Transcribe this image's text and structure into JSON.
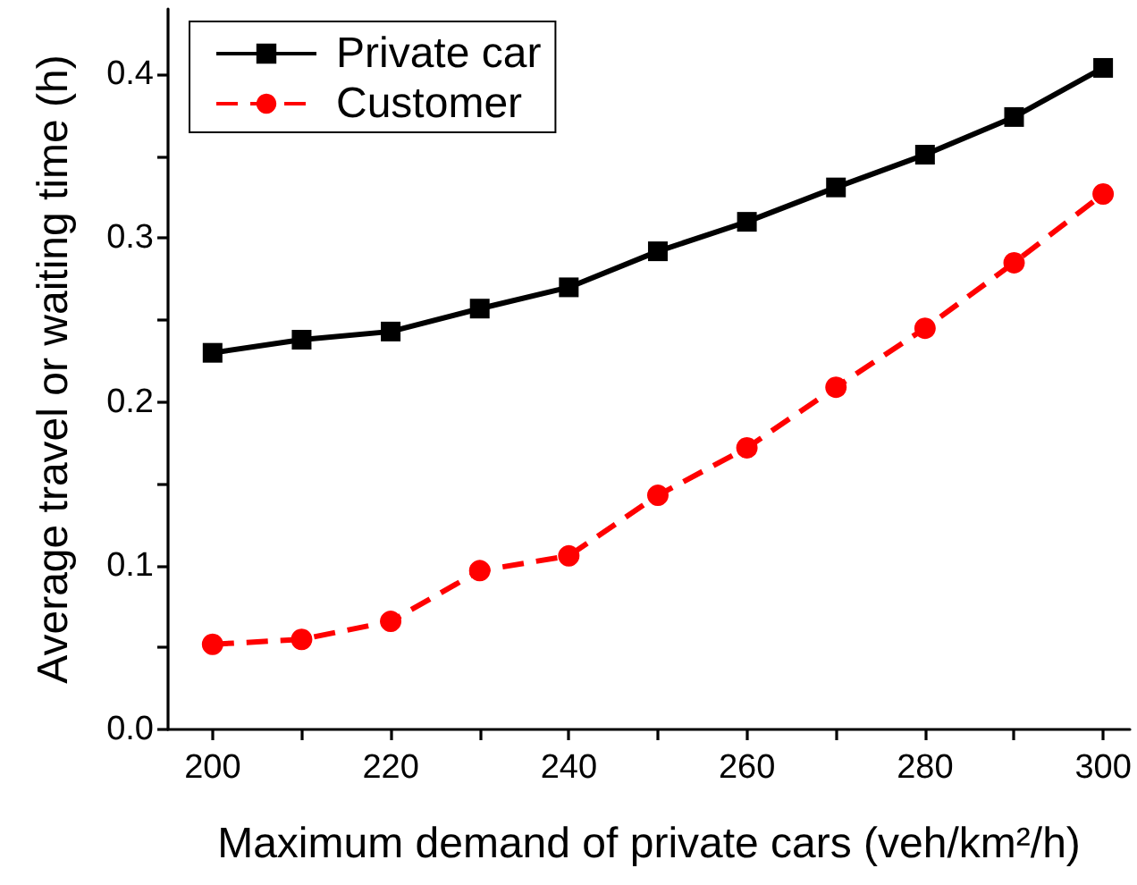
{
  "chart_data": {
    "type": "line",
    "xlabel": "Maximum demand of private cars (veh/km²/h)",
    "ylabel": "Average travel or waiting time (h)",
    "x": [
      200,
      210,
      220,
      230,
      240,
      250,
      260,
      270,
      280,
      290,
      300
    ],
    "series": [
      {
        "name": "Private car",
        "color": "#000000",
        "marker": "square",
        "line_style": "solid",
        "values": [
          0.23,
          0.238,
          0.243,
          0.257,
          0.27,
          0.292,
          0.31,
          0.331,
          0.351,
          0.374,
          0.404
        ]
      },
      {
        "name": "Customer",
        "color": "#ff0000",
        "marker": "circle",
        "line_style": "dashed",
        "values": [
          0.052,
          0.055,
          0.066,
          0.097,
          0.106,
          0.143,
          0.172,
          0.209,
          0.245,
          0.285,
          0.327
        ]
      }
    ],
    "xlim": [
      195,
      303
    ],
    "xticks": [
      200,
      {
        "value": 210,
        "label": null
      },
      220,
      {
        "value": 230,
        "label": null
      },
      240,
      {
        "value": 250,
        "label": null
      },
      260,
      {
        "value": 270,
        "label": null
      },
      280,
      {
        "value": 290,
        "label": null
      },
      300
    ],
    "ylim": [
      0,
      0.44
    ],
    "yticks": [
      {
        "value": 0,
        "label": "0.0"
      },
      {
        "value": 0.05,
        "label": null
      },
      0.1,
      {
        "value": 0.15,
        "label": null
      },
      0.2,
      {
        "value": 0.25,
        "label": null
      },
      0.3,
      {
        "value": 0.35,
        "label": null
      },
      0.4
    ],
    "grid": false,
    "legend": "top left"
  }
}
